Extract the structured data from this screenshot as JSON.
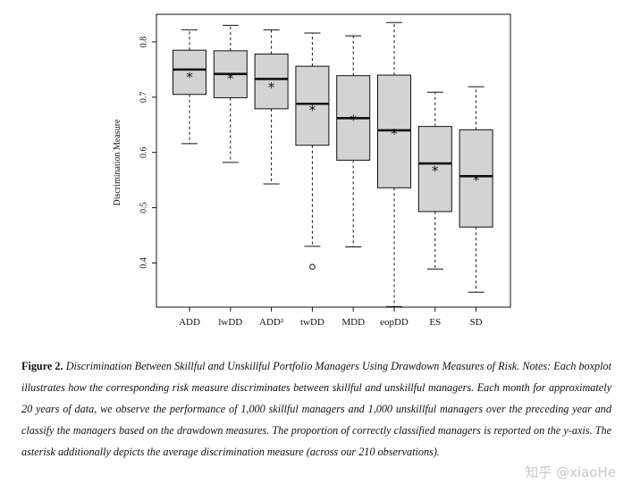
{
  "chart_data": {
    "type": "box",
    "ylabel": "Discrimination Measure",
    "xlabel": "",
    "ylim": [
      0.32,
      0.85
    ],
    "yticks": [
      0.4,
      0.5,
      0.6,
      0.7,
      0.8
    ],
    "ytick_labels": [
      "0.4",
      "0.5",
      "0.6",
      "0.7",
      "0.8"
    ],
    "grid": false,
    "categories": [
      "ADD",
      "lwDD",
      "ADD²",
      "twDD",
      "MDD",
      "eopDD",
      "ES",
      "SD"
    ],
    "boxes": [
      {
        "label": "ADD",
        "whisker_low": 0.616,
        "q1": 0.705,
        "median": 0.75,
        "q3": 0.785,
        "whisker_high": 0.822,
        "mean": 0.738,
        "outliers": []
      },
      {
        "label": "lwDD",
        "whisker_low": 0.582,
        "q1": 0.699,
        "median": 0.742,
        "q3": 0.784,
        "whisker_high": 0.83,
        "mean": 0.735,
        "outliers": []
      },
      {
        "label": "ADD²",
        "whisker_low": 0.543,
        "q1": 0.679,
        "median": 0.733,
        "q3": 0.778,
        "whisker_high": 0.822,
        "mean": 0.719,
        "outliers": []
      },
      {
        "label": "twDD",
        "whisker_low": 0.43,
        "q1": 0.613,
        "median": 0.688,
        "q3": 0.756,
        "whisker_high": 0.816,
        "mean": 0.678,
        "outliers": [
          0.393
        ]
      },
      {
        "label": "MDD",
        "whisker_low": 0.429,
        "q1": 0.586,
        "median": 0.662,
        "q3": 0.739,
        "whisker_high": 0.811,
        "mean": 0.66,
        "outliers": []
      },
      {
        "label": "eopDD",
        "whisker_low": 0.321,
        "q1": 0.536,
        "median": 0.64,
        "q3": 0.74,
        "whisker_high": 0.835,
        "mean": 0.635,
        "outliers": []
      },
      {
        "label": "ES",
        "whisker_low": 0.389,
        "q1": 0.493,
        "median": 0.58,
        "q3": 0.647,
        "whisker_high": 0.709,
        "mean": 0.568,
        "outliers": []
      },
      {
        "label": "SD",
        "whisker_low": 0.347,
        "q1": 0.465,
        "median": 0.557,
        "q3": 0.641,
        "whisker_high": 0.719,
        "mean": 0.551,
        "outliers": []
      }
    ],
    "mean_marker": "*",
    "colors": {
      "box_fill": "#d3d3d3",
      "stroke": "#111111"
    }
  },
  "caption": {
    "label": "Figure 2.",
    "text": "Discrimination Between Skillful and Unskillful Portfolio Managers Using Drawdown Measures of Risk. Notes: Each boxplot illustrates how the corresponding risk measure discriminates between skillful and unskillful managers. Each month for approximately 20 years of data, we observe the performance of 1,000 skillful managers and 1,000 unskillful managers over the preceding year and classify the managers based on the drawdown measures. The proportion of correctly classified managers is reported on the y-axis. The asterisk additionally depicts the average discrimination measure (across our 210 observations)."
  },
  "watermark": "知乎 @xiaoHe"
}
